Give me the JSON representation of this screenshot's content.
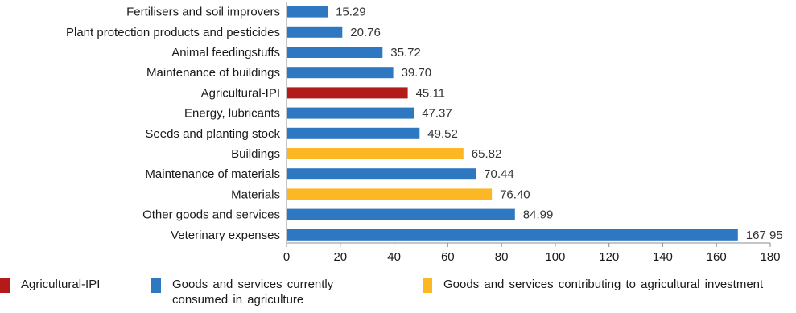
{
  "chart_data": {
    "type": "bar",
    "orientation": "horizontal",
    "categories": [
      "Fertilisers and soil improvers",
      "Plant protection products and pesticides",
      "Animal feedingstuffs",
      "Maintenance of buildings",
      "Agricultural-IPI",
      "Energy, lubricants",
      "Seeds and planting stock",
      "Buildings",
      "Maintenance of materials",
      "Materials",
      "Other goods and services",
      "Veterinary expenses"
    ],
    "values": [
      15.29,
      20.76,
      35.72,
      39.7,
      45.11,
      47.37,
      49.52,
      65.82,
      70.44,
      76.4,
      84.99,
      167.95
    ],
    "value_labels": [
      "15.29",
      "20.76",
      "35.72",
      "39.70",
      "45.11",
      "47.37",
      "49.52",
      "65.82",
      "70.44",
      "76.40",
      "84.99",
      "167 95"
    ],
    "groups": [
      "goods",
      "goods",
      "goods",
      "goods",
      "ipi",
      "goods",
      "goods",
      "investment",
      "goods",
      "investment",
      "goods",
      "goods"
    ],
    "group_colors": {
      "ipi": "#b31b1b",
      "goods": "#2e78c2",
      "investment": "#fbb824"
    },
    "xlim": [
      0,
      180
    ],
    "xticks": [
      "0",
      "20",
      "40",
      "60",
      "80",
      "100",
      "120",
      "140",
      "160",
      "180"
    ],
    "grid": false,
    "legend_position": "bottom",
    "legend": [
      {
        "group": "ipi",
        "label": "Agricultural-IPI"
      },
      {
        "group": "goods",
        "label": "Goods  and  services currently consumed in agriculture"
      },
      {
        "group": "investment",
        "label": "Goods and services contributing to agricultural investment"
      }
    ]
  }
}
